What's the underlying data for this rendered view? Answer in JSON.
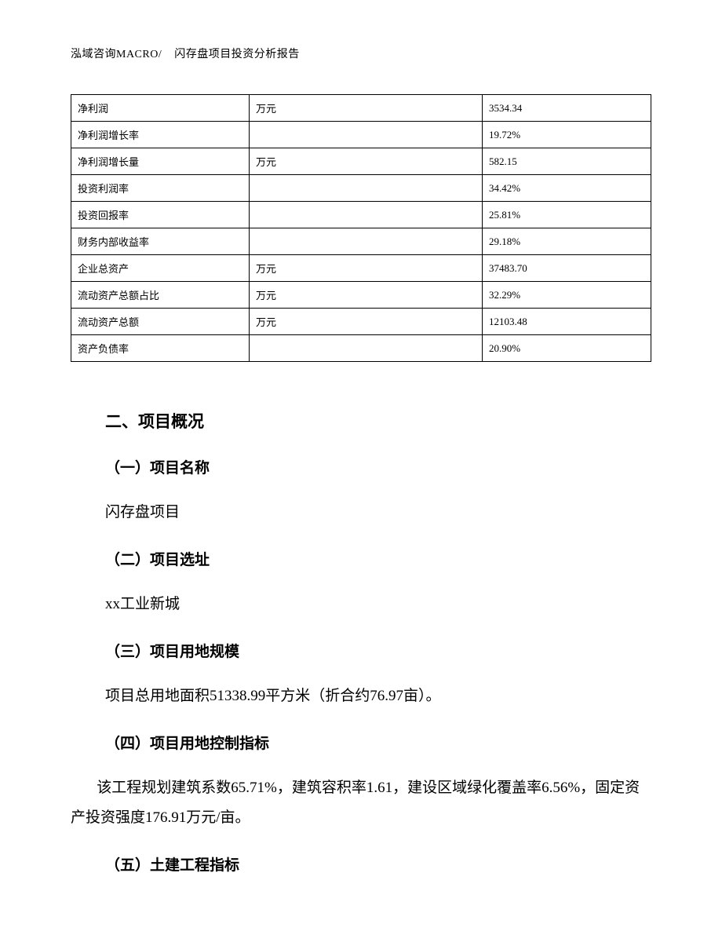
{
  "header": {
    "left": "泓域咨询MACRO/",
    "right": "闪存盘项目投资分析报告"
  },
  "table": {
    "columns": [
      "label",
      "unit",
      "value"
    ],
    "rows": [
      {
        "label": "净利润",
        "unit": "万元",
        "value": "3534.34"
      },
      {
        "label": "净利润增长率",
        "unit": "",
        "value": "19.72%"
      },
      {
        "label": "净利润增长量",
        "unit": "万元",
        "value": "582.15"
      },
      {
        "label": "投资利润率",
        "unit": "",
        "value": "34.42%"
      },
      {
        "label": "投资回报率",
        "unit": "",
        "value": "25.81%"
      },
      {
        "label": "财务内部收益率",
        "unit": "",
        "value": "29.18%"
      },
      {
        "label": "企业总资产",
        "unit": "万元",
        "value": "37483.70"
      },
      {
        "label": "流动资产总额占比",
        "unit": "万元",
        "value": "32.29%"
      },
      {
        "label": "流动资产总额",
        "unit": "万元",
        "value": "12103.48"
      },
      {
        "label": "资产负债率",
        "unit": "",
        "value": "20.90%"
      }
    ]
  },
  "section": {
    "title": "二、项目概况",
    "items": [
      {
        "heading": "（一）项目名称",
        "body": "闪存盘项目"
      },
      {
        "heading": "（二）项目选址",
        "body": "xx工业新城"
      },
      {
        "heading": "（三）项目用地规模",
        "body": "项目总用地面积51338.99平方米（折合约76.97亩）。"
      },
      {
        "heading": "（四）项目用地控制指标",
        "body": "该工程规划建筑系数65.71%，建筑容积率1.61，建设区域绿化覆盖率6.56%，固定资产投资强度176.91万元/亩。"
      },
      {
        "heading": "（五）土建工程指标",
        "body": ""
      }
    ]
  },
  "style": {
    "background_color": "#ffffff",
    "text_color": "#000000",
    "border_color": "#000000",
    "body_font_family": "SimSun",
    "heading_font_family": "SimHei",
    "header_fontsize": 14,
    "table_fontsize": 13,
    "section_title_fontsize": 21,
    "sub_title_fontsize": 19,
    "body_fontsize": 19,
    "line_height": 2.0
  }
}
